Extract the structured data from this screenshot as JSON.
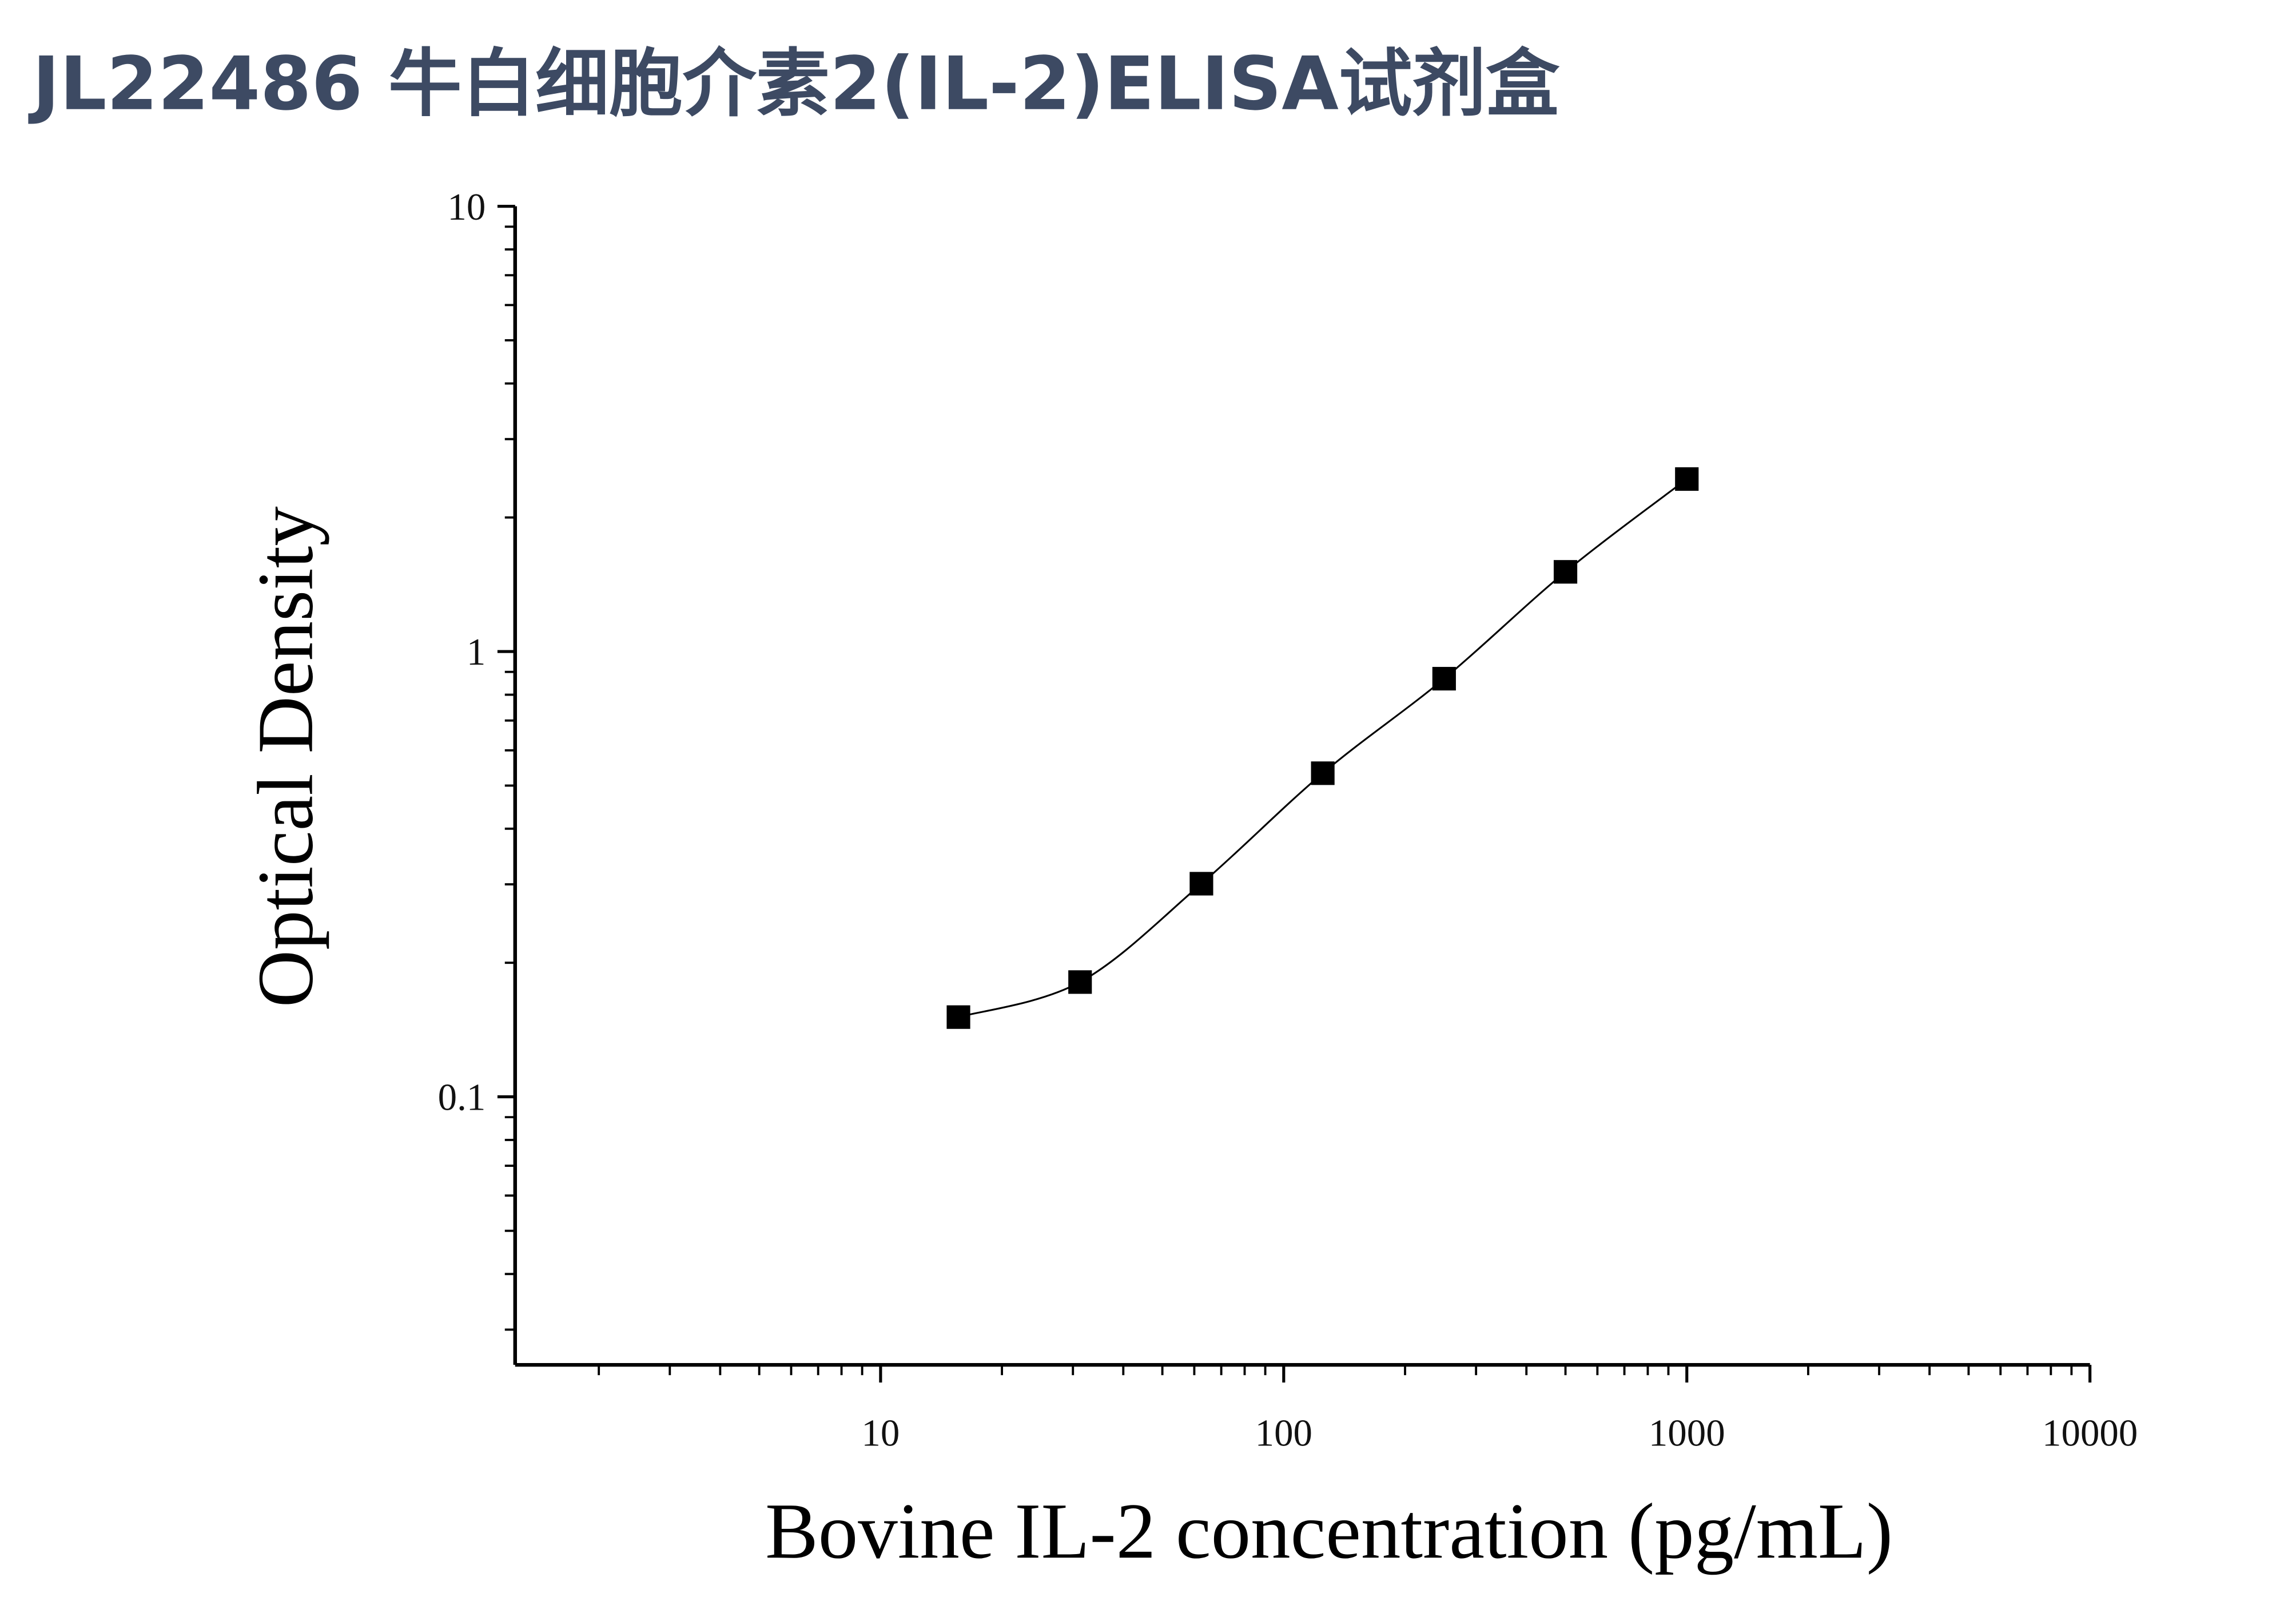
{
  "chart_data": {
    "type": "scatter",
    "title": "JL22486 牛白细胞介素2(IL-2)ELISA试剂盒",
    "x_label": "Bovine IL-2 concentration (pg/mL)",
    "y_label": "Optical Density",
    "x": [
      15.6,
      31.25,
      62.5,
      125,
      250,
      500,
      1000
    ],
    "values": [
      0.151,
      0.181,
      0.301,
      0.533,
      0.869,
      1.51,
      2.44
    ],
    "color": "#000000",
    "marker": "square",
    "fit_line": true,
    "xscale": "log",
    "yscale": "log",
    "xlim": [
      1.24,
      10000
    ],
    "xticks": [
      10,
      100,
      1000,
      10000
    ],
    "ylim": [
      0.025,
      10
    ],
    "yticks": [
      0.1,
      1,
      10
    ],
    "grid": false
  }
}
